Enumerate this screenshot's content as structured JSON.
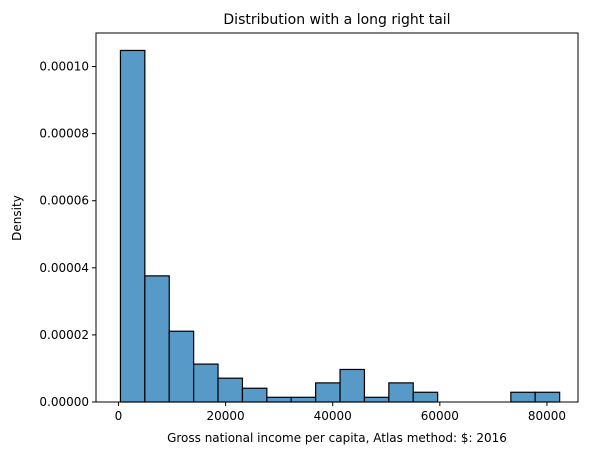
{
  "chart_data": {
    "type": "histogram",
    "title": "Distribution with a long right tail",
    "xlabel": "Gross national income per capita, Atlas method: $: 2016",
    "ylabel": "Density",
    "xlim": [
      -4200,
      85800
    ],
    "ylim": [
      0,
      0.00011
    ],
    "xticks": [
      0,
      20000,
      40000,
      60000,
      80000
    ],
    "xtick_labels": [
      "0",
      "20000",
      "40000",
      "60000",
      "80000"
    ],
    "yticks": [
      0,
      2e-05,
      4e-05,
      6e-05,
      8e-05,
      0.0001
    ],
    "ytick_labels": [
      "0.00000",
      "0.00002",
      "0.00004",
      "0.00006",
      "0.00008",
      "0.00010"
    ],
    "bin_start": 364,
    "bin_width": 4556,
    "values": [
      0.0001048,
      3.76e-05,
      2.11e-05,
      1.13e-05,
      7.1e-06,
      4.1e-06,
      1.4e-06,
      1.4e-06,
      5.7e-06,
      9.7e-06,
      1.4e-06,
      5.7e-06,
      2.9e-06,
      0,
      0,
      0,
      2.9e-06,
      2.9e-06
    ],
    "grid": false,
    "bar_color": "#5799c7",
    "edge_color": "#000000"
  }
}
